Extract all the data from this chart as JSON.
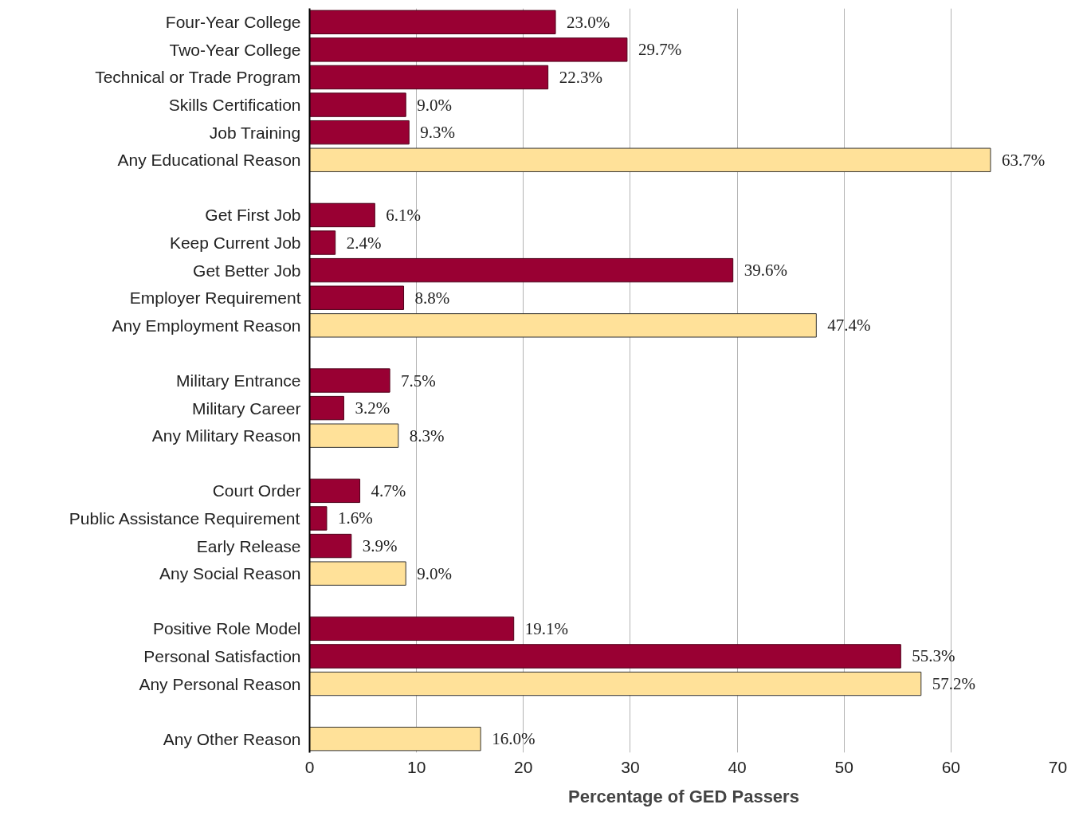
{
  "chart_data": {
    "type": "bar",
    "orientation": "horizontal",
    "xlabel": "Percentage of GED Passers",
    "categories": [
      "Four-Year College",
      "Two-Year College",
      "Technical or Trade Program",
      "Skills Certification",
      "Job Training",
      "Any Educational Reason",
      null,
      "Get First Job",
      "Keep Current Job",
      "Get Better Job",
      "Employer Requirement",
      "Any Employment Reason",
      null,
      "Military Entrance",
      "Military Career",
      "Any Military Reason",
      null,
      "Court Order",
      "Public Assistance Requirement",
      "Early Release",
      "Any Social Reason",
      null,
      "Positive Role Model",
      "Personal Satisfaction",
      "Any Personal Reason",
      null,
      "Any Other Reason"
    ],
    "values": [
      23.0,
      29.7,
      22.3,
      9.0,
      9.3,
      63.7,
      null,
      6.1,
      2.4,
      39.6,
      8.8,
      47.4,
      null,
      7.5,
      3.2,
      8.3,
      null,
      4.7,
      1.6,
      3.9,
      9.0,
      null,
      19.1,
      55.3,
      57.2,
      null,
      16.0
    ],
    "colors": [
      "#990033",
      "#990033",
      "#990033",
      "#990033",
      "#990033",
      "#ffe199",
      null,
      "#990033",
      "#990033",
      "#990033",
      "#990033",
      "#ffe199",
      null,
      "#990033",
      "#990033",
      "#ffe199",
      null,
      "#990033",
      "#990033",
      "#990033",
      "#ffe199",
      null,
      "#990033",
      "#990033",
      "#ffe199",
      null,
      "#ffe199"
    ],
    "value_labels": [
      "23.0%",
      "29.7%",
      "22.3%",
      "9.0%",
      "9.3%",
      "63.7%",
      null,
      "6.1%",
      "2.4%",
      "39.6%",
      "8.8%",
      "47.4%",
      null,
      "7.5%",
      "3.2%",
      "8.3%",
      null,
      "4.7%",
      "1.6%",
      "3.9%",
      "9.0%",
      null,
      "19.1%",
      "55.3%",
      "57.2%",
      null,
      "16.0%"
    ],
    "xlim": [
      0,
      70
    ],
    "xticks": [
      0,
      10,
      20,
      30,
      40,
      50,
      60,
      70
    ],
    "grid": "x"
  }
}
